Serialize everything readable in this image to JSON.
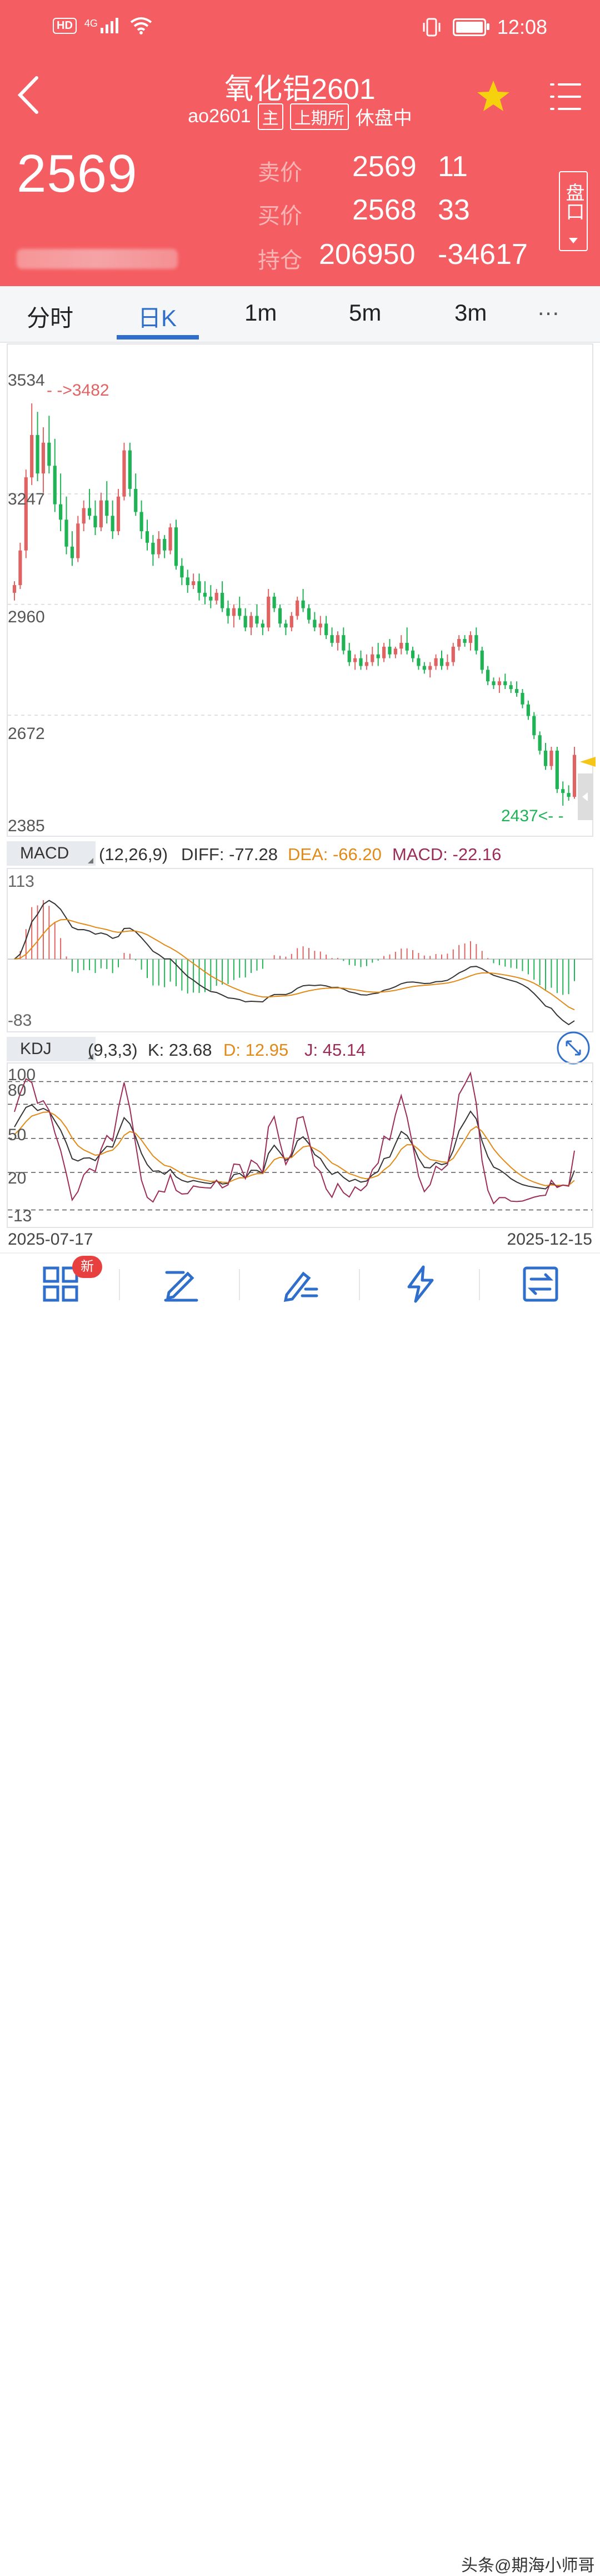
{
  "status": {
    "hd": "HD",
    "net": "4G",
    "time": "12:08"
  },
  "header": {
    "title": "氧化铝2601",
    "code": "ao2601",
    "tag_main": "主",
    "tag_exchange": "上期所",
    "state": "休盘中",
    "last_price": "2569",
    "ask_label": "卖价",
    "ask_price": "2569",
    "ask_vol": "11",
    "bid_label": "买价",
    "bid_price": "2568",
    "bid_vol": "33",
    "oi_label": "持仓",
    "oi_value": "206950",
    "oi_change": "-34617",
    "pankou": "盘口"
  },
  "tabs": [
    "分时",
    "日K",
    "1m",
    "5m",
    "3m",
    "…"
  ],
  "active_tab": 1,
  "colors": {
    "header_bg": "#f45e62",
    "up": "#e06363",
    "down": "#1fb356",
    "accent": "#2f6fcb",
    "dea": "#e18a18",
    "diff": "#333333",
    "macd_j": "#9b2c57"
  },
  "kline": {
    "y_labels": [
      "3534",
      "3247",
      "2960",
      "2672",
      "2385"
    ],
    "high_label": "- ->3482",
    "low_label": "2437<- -"
  },
  "macd": {
    "name": "MACD",
    "params": "(12,26,9)",
    "diff": "DIFF: -77.28",
    "dea": "DEA: -66.20",
    "macd": "MACD: -22.16",
    "y_max": "113",
    "y_min": "-83"
  },
  "kdj": {
    "name": "KDJ",
    "params": "(9,3,3)",
    "k": "K: 23.68",
    "d": "D: 12.95",
    "j": "J: 45.14",
    "levels": [
      "100",
      "80",
      "50",
      "20",
      "-13"
    ]
  },
  "dates": {
    "start": "2025-07-17",
    "end": "2025-12-15"
  },
  "bottom_nav": {
    "badge": "新"
  },
  "watermark": "头条@期海小师哥",
  "chart_data": {
    "type": "candlestick",
    "title": "",
    "x_start": "2025-07-17",
    "x_end": "2025-12-15",
    "ylim": [
      2385,
      3534
    ],
    "candles": [
      [
        2990,
        3020,
        2970,
        3010
      ],
      [
        3010,
        3120,
        3000,
        3100
      ],
      [
        3100,
        3310,
        3080,
        3290
      ],
      [
        3290,
        3482,
        3270,
        3400
      ],
      [
        3400,
        3460,
        3280,
        3300
      ],
      [
        3300,
        3420,
        3250,
        3380
      ],
      [
        3380,
        3450,
        3300,
        3320
      ],
      [
        3320,
        3390,
        3200,
        3220
      ],
      [
        3220,
        3300,
        3150,
        3180
      ],
      [
        3180,
        3240,
        3090,
        3110
      ],
      [
        3110,
        3150,
        3060,
        3080
      ],
      [
        3080,
        3190,
        3070,
        3170
      ],
      [
        3170,
        3230,
        3150,
        3210
      ],
      [
        3210,
        3260,
        3180,
        3190
      ],
      [
        3190,
        3230,
        3140,
        3160
      ],
      [
        3160,
        3250,
        3150,
        3230
      ],
      [
        3230,
        3280,
        3170,
        3190
      ],
      [
        3190,
        3230,
        3130,
        3150
      ],
      [
        3150,
        3260,
        3140,
        3240
      ],
      [
        3240,
        3380,
        3230,
        3360
      ],
      [
        3360,
        3380,
        3240,
        3260
      ],
      [
        3260,
        3300,
        3190,
        3200
      ],
      [
        3200,
        3230,
        3130,
        3150
      ],
      [
        3150,
        3180,
        3100,
        3120
      ],
      [
        3120,
        3140,
        3060,
        3090
      ],
      [
        3090,
        3150,
        3080,
        3130
      ],
      [
        3130,
        3140,
        3080,
        3100
      ],
      [
        3100,
        3170,
        3090,
        3160
      ],
      [
        3160,
        3180,
        3050,
        3060
      ],
      [
        3060,
        3080,
        3010,
        3030
      ],
      [
        3030,
        3050,
        2990,
        3010
      ],
      [
        3010,
        3040,
        3000,
        3020
      ],
      [
        3020,
        3040,
        2970,
        2990
      ],
      [
        2990,
        3020,
        2960,
        2980
      ],
      [
        2980,
        3010,
        2950,
        2970
      ],
      [
        2970,
        3000,
        2960,
        2990
      ],
      [
        2990,
        3020,
        2940,
        2950
      ],
      [
        2950,
        2970,
        2910,
        2930
      ],
      [
        2930,
        2960,
        2900,
        2950
      ],
      [
        2950,
        2980,
        2920,
        2930
      ],
      [
        2930,
        2950,
        2890,
        2900
      ],
      [
        2900,
        2940,
        2880,
        2930
      ],
      [
        2930,
        2960,
        2900,
        2910
      ],
      [
        2910,
        2920,
        2880,
        2900
      ],
      [
        2900,
        3000,
        2890,
        2980
      ],
      [
        2980,
        2990,
        2940,
        2950
      ],
      [
        2950,
        2960,
        2900,
        2910
      ],
      [
        2910,
        2920,
        2880,
        2900
      ],
      [
        2900,
        2940,
        2890,
        2930
      ],
      [
        2930,
        2980,
        2920,
        2970
      ],
      [
        2970,
        3000,
        2940,
        2950
      ],
      [
        2950,
        2960,
        2910,
        2920
      ],
      [
        2920,
        2940,
        2890,
        2900
      ],
      [
        2900,
        2930,
        2880,
        2910
      ],
      [
        2910,
        2930,
        2870,
        2880
      ],
      [
        2880,
        2900,
        2850,
        2860
      ],
      [
        2860,
        2890,
        2840,
        2880
      ],
      [
        2880,
        2900,
        2830,
        2840
      ],
      [
        2840,
        2860,
        2800,
        2810
      ],
      [
        2810,
        2830,
        2790,
        2820
      ],
      [
        2820,
        2840,
        2790,
        2800
      ],
      [
        2800,
        2830,
        2790,
        2810
      ],
      [
        2810,
        2850,
        2800,
        2830
      ],
      [
        2830,
        2860,
        2800,
        2820
      ],
      [
        2820,
        2860,
        2810,
        2850
      ],
      [
        2850,
        2870,
        2820,
        2830
      ],
      [
        2830,
        2850,
        2820,
        2845
      ],
      [
        2845,
        2880,
        2830,
        2860
      ],
      [
        2860,
        2900,
        2830,
        2840
      ],
      [
        2840,
        2850,
        2810,
        2820
      ],
      [
        2820,
        2830,
        2790,
        2800
      ],
      [
        2800,
        2810,
        2780,
        2790
      ],
      [
        2790,
        2810,
        2770,
        2800
      ],
      [
        2800,
        2830,
        2790,
        2820
      ],
      [
        2820,
        2840,
        2790,
        2800
      ],
      [
        2800,
        2830,
        2790,
        2810
      ],
      [
        2810,
        2860,
        2800,
        2850
      ],
      [
        2850,
        2880,
        2840,
        2870
      ],
      [
        2870,
        2880,
        2850,
        2860
      ],
      [
        2860,
        2890,
        2840,
        2880
      ],
      [
        2880,
        2900,
        2830,
        2840
      ],
      [
        2840,
        2850,
        2780,
        2790
      ],
      [
        2790,
        2800,
        2750,
        2760
      ],
      [
        2760,
        2770,
        2740,
        2750
      ],
      [
        2750,
        2770,
        2730,
        2760
      ],
      [
        2760,
        2780,
        2740,
        2750
      ],
      [
        2750,
        2760,
        2730,
        2740
      ],
      [
        2740,
        2760,
        2720,
        2730
      ],
      [
        2730,
        2740,
        2690,
        2700
      ],
      [
        2700,
        2710,
        2660,
        2670
      ],
      [
        2670,
        2680,
        2610,
        2620
      ],
      [
        2620,
        2630,
        2570,
        2580
      ],
      [
        2580,
        2600,
        2530,
        2540
      ],
      [
        2540,
        2590,
        2530,
        2580
      ],
      [
        2580,
        2590,
        2470,
        2480
      ],
      [
        2480,
        2500,
        2437,
        2470
      ],
      [
        2470,
        2490,
        2450,
        2460
      ],
      [
        2460,
        2590,
        2455,
        2569
      ]
    ],
    "macd_series": {
      "diff": "line",
      "dea": "line",
      "hist": "bars",
      "ylim": [
        -83,
        113
      ]
    },
    "kdj_levels": [
      100,
      80,
      50,
      20,
      -13
    ]
  }
}
